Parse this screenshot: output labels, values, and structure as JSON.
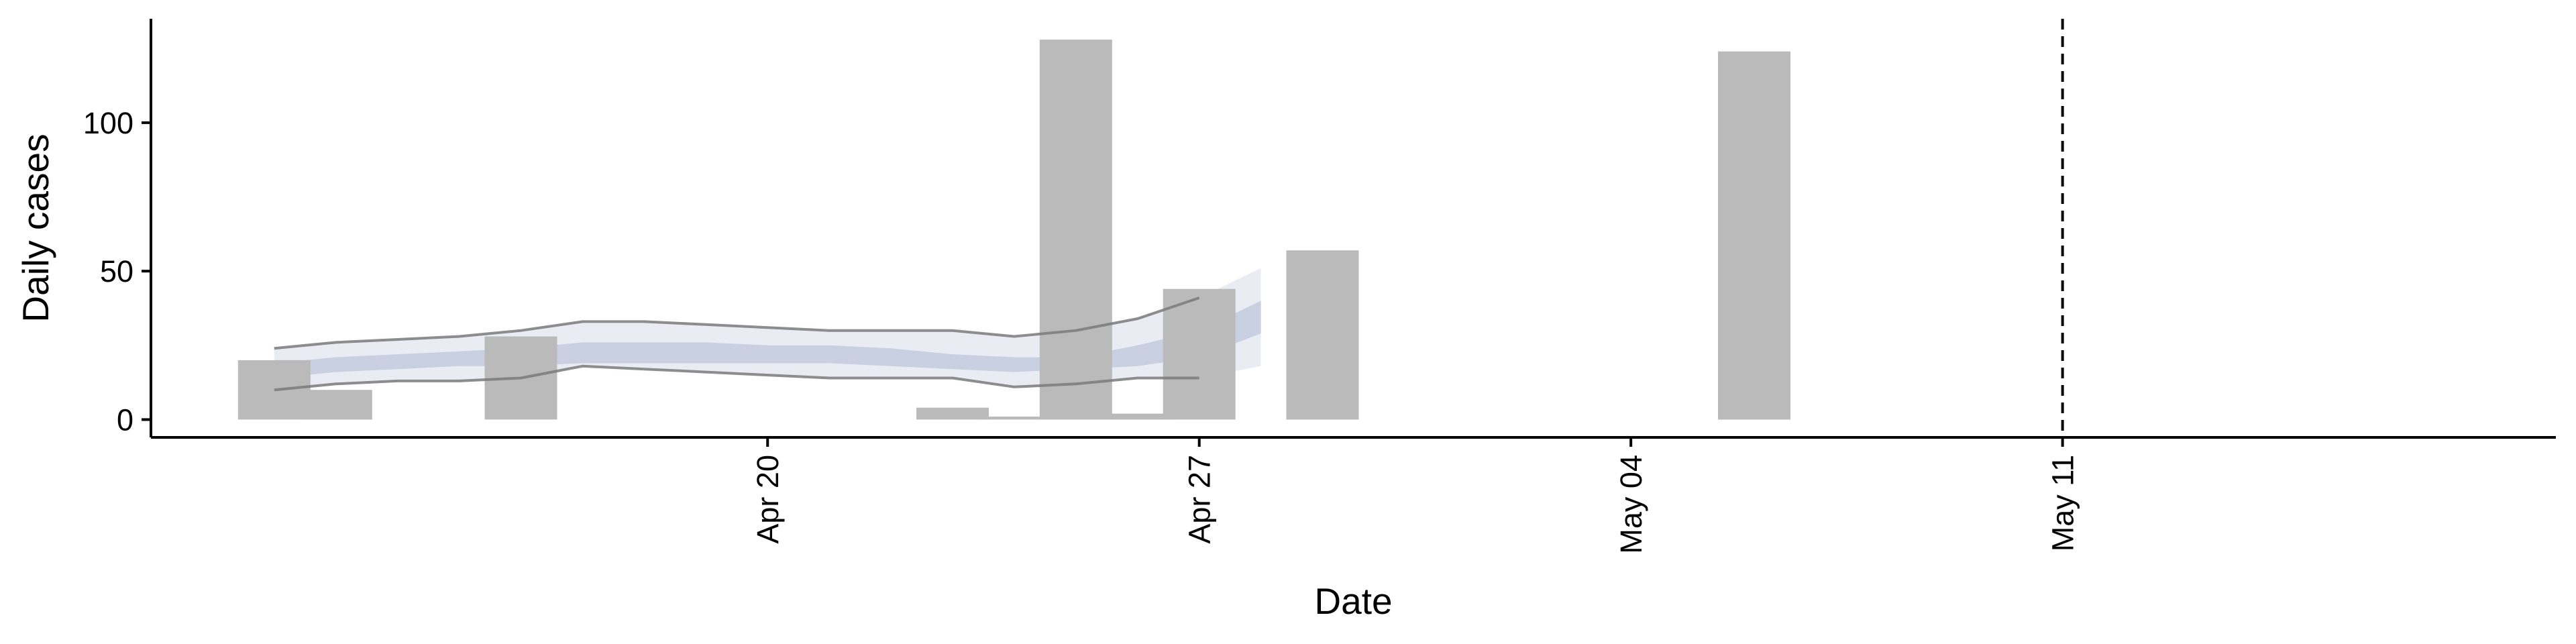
{
  "chart_data": {
    "type": "bar",
    "xlabel": "Date",
    "ylabel": "Daily cases",
    "x_scale": "date",
    "xlim": [
      "2020-04-10",
      "2020-05-19"
    ],
    "ylim": [
      -6,
      135
    ],
    "grid": false,
    "x_ticks": [
      {
        "date": "2020-04-20",
        "label": "Apr 20"
      },
      {
        "date": "2020-04-27",
        "label": "Apr 27"
      },
      {
        "date": "2020-05-04",
        "label": "May 04"
      },
      {
        "date": "2020-05-11",
        "label": "May 11"
      }
    ],
    "y_ticks": [
      {
        "value": 0,
        "label": "0"
      },
      {
        "value": 50,
        "label": "50"
      },
      {
        "value": 100,
        "label": "100"
      }
    ],
    "bars": [
      {
        "date": "2020-04-12",
        "value": 20
      },
      {
        "date": "2020-04-13",
        "value": 10
      },
      {
        "date": "2020-04-16",
        "value": 28
      },
      {
        "date": "2020-04-23",
        "value": 4
      },
      {
        "date": "2020-04-24",
        "value": 1
      },
      {
        "date": "2020-04-25",
        "value": 128
      },
      {
        "date": "2020-04-26",
        "value": 2
      },
      {
        "date": "2020-04-27",
        "value": 44
      },
      {
        "date": "2020-04-29",
        "value": 57
      },
      {
        "date": "2020-05-06",
        "value": 124
      }
    ],
    "bar_color": "#bababa",
    "vline": {
      "date": "2020-05-11",
      "style": "dashed",
      "color": "#000000"
    },
    "estimate": {
      "dates": [
        "2020-04-12",
        "2020-04-13",
        "2020-04-14",
        "2020-04-15",
        "2020-04-16",
        "2020-04-17",
        "2020-04-18",
        "2020-04-19",
        "2020-04-20",
        "2020-04-21",
        "2020-04-22",
        "2020-04-23",
        "2020-04-24",
        "2020-04-25",
        "2020-04-26",
        "2020-04-27",
        "2020-04-28"
      ],
      "outer_upper": [
        24,
        26,
        27,
        28,
        30,
        33,
        33,
        32,
        31,
        30,
        30,
        30,
        28,
        30,
        34,
        41,
        51
      ],
      "outer_lower": [
        10,
        12,
        13,
        13,
        14,
        18,
        17,
        16,
        15,
        14,
        14,
        14,
        11,
        12,
        14,
        14,
        18
      ],
      "inner_upper": [
        19,
        21,
        22,
        23,
        24,
        26,
        26,
        26,
        25,
        25,
        24,
        22,
        21,
        21,
        25,
        30,
        40
      ],
      "inner_lower": [
        14,
        16,
        17,
        18,
        18,
        19,
        19,
        19,
        19,
        19,
        18,
        17,
        16,
        17,
        18,
        21,
        29
      ],
      "outer_band_color": "#e9ecf3",
      "inner_band_color": "#c8d0e2",
      "outline_color": "#7a7a7a"
    }
  }
}
